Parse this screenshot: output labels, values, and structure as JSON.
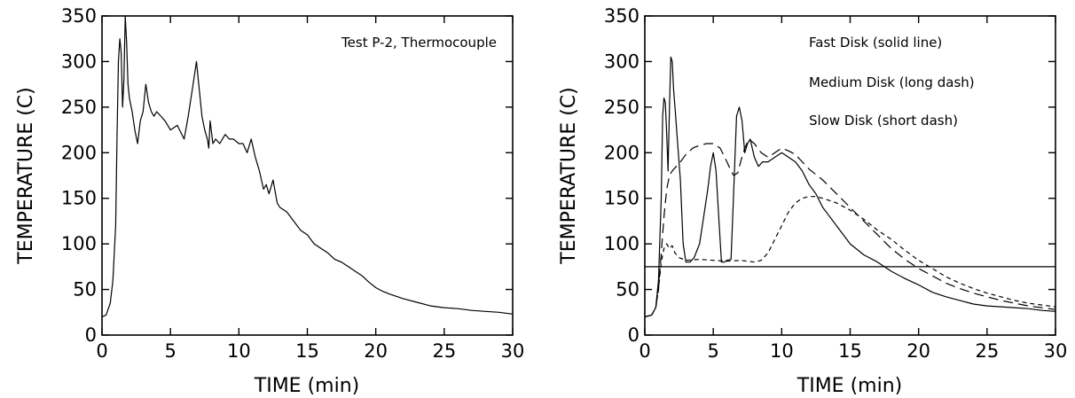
{
  "chart_data": [
    {
      "type": "line",
      "title": "",
      "xlabel": "TIME (min)",
      "ylabel": "TEMPERATURE (C)",
      "xlim": [
        0,
        30
      ],
      "ylim": [
        0,
        350
      ],
      "xticks": [
        0,
        5,
        10,
        15,
        20,
        25,
        30
      ],
      "yticks": [
        0,
        50,
        100,
        150,
        200,
        250,
        300,
        350
      ],
      "grid": false,
      "annotations": [
        {
          "text": "Test P-2, Thermocouple",
          "position": "top-right"
        }
      ],
      "series": [
        {
          "style": "solid",
          "x": [
            0,
            0.3,
            0.6,
            0.8,
            1.0,
            1.1,
            1.2,
            1.3,
            1.4,
            1.5,
            1.6,
            1.7,
            1.8,
            1.9,
            2.0,
            2.2,
            2.4,
            2.6,
            2.8,
            3.0,
            3.2,
            3.4,
            3.6,
            3.8,
            4.0,
            4.3,
            4.6,
            5.0,
            5.5,
            6.0,
            6.3,
            6.6,
            6.9,
            7.1,
            7.3,
            7.5,
            7.7,
            7.8,
            7.9,
            8.1,
            8.3,
            8.6,
            9.0,
            9.3,
            9.6,
            10.0,
            10.3,
            10.6,
            10.9,
            11.2,
            11.5,
            11.8,
            12.0,
            12.2,
            12.5,
            12.8,
            13.0,
            13.5,
            14.0,
            14.5,
            15.0,
            15.5,
            16.0,
            16.5,
            17.0,
            17.5,
            18.0,
            18.5,
            19.0,
            19.5,
            20.0,
            20.5,
            21.0,
            22.0,
            23.0,
            24.0,
            25.0,
            26.0,
            27.0,
            28.0,
            29.0,
            30.0
          ],
          "y": [
            20,
            22,
            35,
            60,
            120,
            220,
            300,
            325,
            310,
            250,
            280,
            350,
            320,
            275,
            260,
            245,
            225,
            210,
            235,
            245,
            275,
            255,
            245,
            240,
            245,
            240,
            235,
            225,
            230,
            215,
            240,
            270,
            300,
            270,
            240,
            225,
            215,
            205,
            235,
            210,
            215,
            210,
            220,
            215,
            215,
            210,
            210,
            200,
            215,
            195,
            180,
            160,
            165,
            155,
            170,
            145,
            140,
            135,
            125,
            115,
            110,
            100,
            95,
            90,
            83,
            80,
            75,
            70,
            65,
            58,
            52,
            48,
            45,
            40,
            36,
            32,
            30,
            29,
            27,
            26,
            25,
            23
          ]
        }
      ]
    },
    {
      "type": "line",
      "title": "",
      "xlabel": "TIME (min)",
      "ylabel": "TEMPERATURE (C)",
      "xlim": [
        0,
        30
      ],
      "ylim": [
        0,
        350
      ],
      "xticks": [
        0,
        5,
        10,
        15,
        20,
        25,
        30
      ],
      "yticks": [
        0,
        50,
        100,
        150,
        200,
        250,
        300,
        350
      ],
      "grid": false,
      "reference_line": {
        "y": 75
      },
      "legend_entries": [
        "Fast Disk (solid line)",
        "Medium Disk (long dash)",
        "Slow Disk (short dash)"
      ],
      "legend_placement": "top-right",
      "series": [
        {
          "style": "solid",
          "x": [
            0,
            0.5,
            0.8,
            1.0,
            1.2,
            1.3,
            1.4,
            1.5,
            1.6,
            1.7,
            1.8,
            1.9,
            2.0,
            2.1,
            2.2,
            2.4,
            2.6,
            2.8,
            3.0,
            3.3,
            3.6,
            4.0,
            4.3,
            4.6,
            4.8,
            5.0,
            5.2,
            5.4,
            5.6,
            5.8,
            6.0,
            6.3,
            6.5,
            6.7,
            6.9,
            7.1,
            7.3,
            7.5,
            7.7,
            8.0,
            8.3,
            8.6,
            9.0,
            9.5,
            10.0,
            10.5,
            11.0,
            11.5,
            12.0,
            12.5,
            13.0,
            13.5,
            14.0,
            15.0,
            16.0,
            17.0,
            18.0,
            19.0,
            20.0,
            21.0,
            22.0,
            23.0,
            24.0,
            25.0,
            26.0,
            27.0,
            28.0,
            29.0,
            30.0
          ],
          "y": [
            20,
            22,
            30,
            60,
            150,
            240,
            260,
            255,
            220,
            180,
            250,
            305,
            300,
            270,
            250,
            210,
            170,
            100,
            80,
            80,
            85,
            100,
            130,
            160,
            185,
            200,
            180,
            130,
            80,
            80,
            82,
            83,
            160,
            240,
            250,
            235,
            200,
            210,
            215,
            195,
            185,
            190,
            190,
            195,
            200,
            195,
            190,
            180,
            165,
            155,
            140,
            130,
            120,
            100,
            88,
            80,
            70,
            62,
            55,
            47,
            42,
            38,
            34,
            32,
            31,
            30,
            29,
            27,
            26
          ]
        },
        {
          "style": "long-dash",
          "x": [
            0,
            0.5,
            0.8,
            1.0,
            1.2,
            1.4,
            1.6,
            1.8,
            2.0,
            2.3,
            2.6,
            3.0,
            3.5,
            4.0,
            4.5,
            5.0,
            5.5,
            6.0,
            6.3,
            6.5,
            6.8,
            7.0,
            7.3,
            7.6,
            8.0,
            8.5,
            9.0,
            9.5,
            10.0,
            10.5,
            11.0,
            11.5,
            12.0,
            13.0,
            14.0,
            15.0,
            16.0,
            17.0,
            18.0,
            19.0,
            20.0,
            21.0,
            22.0,
            23.0,
            24.0,
            25.0,
            26.0,
            27.0,
            28.0,
            29.0,
            30.0
          ],
          "y": [
            20,
            22,
            30,
            50,
            90,
            130,
            160,
            175,
            180,
            185,
            190,
            198,
            205,
            208,
            210,
            210,
            205,
            190,
            180,
            175,
            178,
            190,
            205,
            215,
            210,
            200,
            195,
            200,
            205,
            202,
            198,
            190,
            182,
            170,
            155,
            140,
            125,
            110,
            95,
            83,
            73,
            65,
            57,
            51,
            46,
            42,
            38,
            35,
            32,
            30,
            28
          ]
        },
        {
          "style": "short-dash",
          "x": [
            0,
            0.5,
            0.8,
            1.0,
            1.2,
            1.4,
            1.6,
            1.8,
            2.0,
            2.2,
            2.5,
            3.0,
            4.0,
            5.0,
            6.0,
            7.0,
            8.0,
            8.5,
            9.0,
            9.5,
            10.0,
            10.5,
            11.0,
            11.5,
            12.0,
            12.5,
            13.0,
            14.0,
            15.0,
            16.0,
            17.0,
            18.0,
            19.0,
            20.0,
            21.0,
            22.0,
            23.0,
            24.0,
            25.0,
            26.0,
            27.0,
            28.0,
            29.0,
            30.0
          ],
          "y": [
            20,
            22,
            30,
            50,
            80,
            95,
            100,
            95,
            98,
            90,
            85,
            82,
            83,
            82,
            81,
            82,
            80,
            82,
            90,
            105,
            120,
            135,
            145,
            150,
            152,
            152,
            150,
            145,
            137,
            127,
            115,
            105,
            93,
            82,
            73,
            64,
            57,
            51,
            46,
            42,
            38,
            35,
            33,
            31
          ]
        }
      ]
    }
  ]
}
